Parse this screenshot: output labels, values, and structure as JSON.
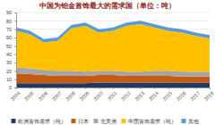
{
  "chart_data": {
    "type": "area",
    "stacked": true,
    "grid": true,
    "legend": "bottom",
    "title": "中国为铂金首饰最大的需求国（单位：吨）",
    "categories": [
      "2004",
      "2005",
      "2006",
      "2007",
      "2008",
      "2009",
      "2010",
      "2011",
      "2012",
      "2013",
      "2014",
      "2015",
      "2016",
      "2017",
      "2018"
    ],
    "ylim": [
      0,
      90
    ],
    "yticks": [
      0,
      10,
      20,
      30,
      40,
      50,
      60,
      70,
      80,
      90
    ],
    "series": [
      {
        "name": "欧洲首饰需求（吨）",
        "color": "#1f3864",
        "values": [
          5,
          5,
          5,
          5,
          5,
          5,
          6,
          6,
          6,
          6,
          6,
          6,
          6,
          6,
          6
        ]
      },
      {
        "name": "日本",
        "color": "#c55a11",
        "values": [
          12,
          11,
          10,
          9,
          9,
          9,
          9,
          9,
          8,
          8,
          8,
          8,
          7,
          7,
          7
        ]
      },
      {
        "name": "北美洲",
        "color": "#a5a5a5",
        "values": [
          7,
          7,
          6,
          6,
          6,
          5,
          5,
          5,
          5,
          5,
          6,
          6,
          6,
          6,
          6
        ]
      },
      {
        "name": "中国首饰需求（吨）",
        "color": "#ffc000",
        "values": [
          44,
          41,
          33,
          36,
          51,
          55,
          46,
          48,
          55,
          57,
          52,
          48,
          47,
          43,
          40
        ]
      },
      {
        "name": "其他",
        "color": "#5b9bd5",
        "values": [
          4,
          4,
          4,
          4,
          4,
          4,
          4,
          4,
          4,
          4,
          4,
          4,
          4,
          4,
          4
        ]
      }
    ]
  }
}
